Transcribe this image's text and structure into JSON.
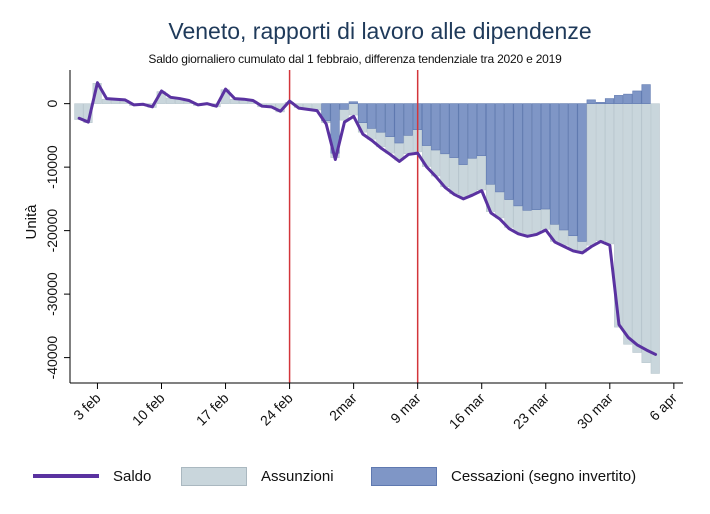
{
  "chart_data": {
    "type": "bar+line",
    "title": "Veneto, rapporti di lavoro alle dipendenze",
    "subtitle": "Saldo giornaliero cumulato dal 1 febbraio, differenza tendenziale tra 2020 e 2019",
    "ylabel": "Unità",
    "xlabel": "",
    "ylim": [
      -44000,
      5300
    ],
    "xlim": [
      "2020-01-31",
      "2020-04-07"
    ],
    "yticks": [
      0,
      -10000,
      -20000,
      -30000,
      -40000
    ],
    "ytick_labels": [
      "0",
      "-10000",
      "-20000",
      "-30000",
      "-40000"
    ],
    "xticks": [
      "2020-02-03",
      "2020-02-10",
      "2020-02-17",
      "2020-02-24",
      "2020-03-02",
      "2020-03-09",
      "2020-03-16",
      "2020-03-23",
      "2020-03-30",
      "2020-04-06"
    ],
    "xtick_labels": [
      "3 feb",
      "10 feb",
      "17 feb",
      "24 feb",
      "2mar",
      "9 mar",
      "16 mar",
      "23 mar",
      "30 mar",
      "6 apr"
    ],
    "vlines": [
      "2020-02-24",
      "2020-03-09"
    ],
    "grid": false,
    "legend_position": "bottom",
    "start_date": "2020-02-01",
    "series": [
      {
        "name": "Saldo",
        "kind": "line",
        "color": "#5a32a0",
        "values": [
          -2300,
          -2900,
          3300,
          800,
          700,
          600,
          -200,
          -100,
          -500,
          2000,
          1000,
          800,
          500,
          -200,
          0,
          -400,
          2300,
          800,
          700,
          500,
          -400,
          -500,
          -1200,
          400,
          -700,
          -900,
          -1100,
          -3200,
          -8800,
          -2900,
          -2000,
          -4800,
          -5800,
          -7000,
          -8000,
          -9100,
          -8000,
          -7800,
          -10000,
          -11500,
          -13200,
          -14300,
          -15000,
          -14400,
          -13700,
          -17200,
          -18200,
          -19700,
          -20500,
          -20900,
          -20600,
          -19900,
          -21800,
          -22500,
          -23200,
          -23500,
          -22500,
          -21700,
          -22300,
          -34800,
          -36800,
          -38000,
          -38800,
          -39500
        ]
      },
      {
        "name": "Assunzioni",
        "kind": "bar",
        "color": "#c9d6dc",
        "values": [
          -2500,
          -3000,
          3200,
          700,
          600,
          500,
          -300,
          -200,
          -600,
          1900,
          900,
          700,
          400,
          -300,
          -100,
          -500,
          2200,
          700,
          600,
          400,
          -500,
          -600,
          -1300,
          200,
          -600,
          -800,
          -1000,
          -3000,
          -8500,
          -2600,
          -1800,
          -4500,
          -5600,
          -6800,
          -7800,
          -8900,
          -7900,
          -7600,
          -9900,
          -11400,
          -13100,
          -14200,
          -14800,
          -14300,
          -13600,
          -17000,
          -18000,
          -19500,
          -20300,
          -20700,
          -20400,
          -19800,
          -21700,
          -22300,
          -23000,
          -23400,
          -22300,
          -21600,
          -22100,
          -35200,
          -37900,
          -39200,
          -40800,
          -42500
        ]
      },
      {
        "name": "Cessazioni (segno invertito)",
        "kind": "bar",
        "color": "#7f96c6",
        "values": [
          0,
          0,
          0,
          0,
          0,
          0,
          0,
          0,
          0,
          0,
          0,
          0,
          0,
          0,
          0,
          0,
          0,
          0,
          0,
          0,
          0,
          0,
          0,
          0,
          0,
          0,
          0,
          -2700,
          -7800,
          -900,
          300,
          -3000,
          -3900,
          -4500,
          -5200,
          -6200,
          -5000,
          -4100,
          -6600,
          -7300,
          -7900,
          -8500,
          -9600,
          -8600,
          -8200,
          -12700,
          -13900,
          -15100,
          -16100,
          -16800,
          -16700,
          -16600,
          -19000,
          -19900,
          -20800,
          -21700,
          600,
          200,
          800,
          1300,
          1500,
          2000,
          3000,
          0
        ]
      }
    ]
  },
  "legend": {
    "items": [
      "Saldo",
      "Assunzioni",
      "Cessazioni (segno invertito)"
    ]
  }
}
